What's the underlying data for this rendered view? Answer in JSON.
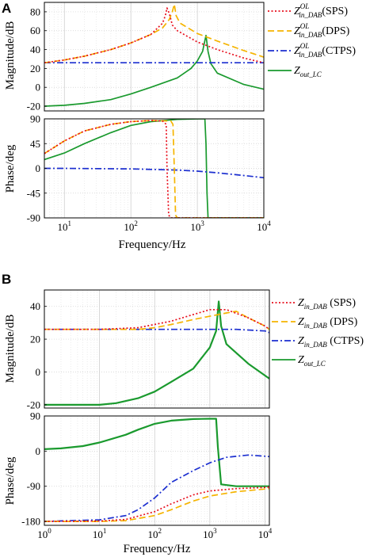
{
  "panel_a": {
    "letter": "A",
    "mag_ylabel": "Magnitude/dB",
    "phase_ylabel": "Phase/deg",
    "xlabel": "Frequency/Hz",
    "mag_ticks": [
      "80",
      "60",
      "40",
      "20",
      "0",
      "-20"
    ],
    "phase_ticks": [
      "90",
      "45",
      "0",
      "-45",
      "-90"
    ],
    "x_ticks": [
      {
        "base": "10",
        "exp": "1"
      },
      {
        "base": "10",
        "exp": "2"
      },
      {
        "base": "10",
        "exp": "3"
      },
      {
        "base": "10",
        "exp": "4"
      }
    ],
    "legend": [
      {
        "sym": "Z",
        "sub": "in_DAB",
        "sup": "OL",
        "tail": "(SPS)",
        "color": "#e8101e",
        "dash": "2,2.5"
      },
      {
        "sym": "Z",
        "sub": "in_DAB",
        "sup": "OL",
        "tail": "(DPS)",
        "color": "#f5b400",
        "dash": "8,4"
      },
      {
        "sym": "Z",
        "sub": "in_DAB",
        "sup": "OL",
        "tail": "(CTPS)",
        "color": "#1c2fd0",
        "dash": "8,3,2,3"
      },
      {
        "sym": "Z",
        "sub": "out_LC",
        "sup": "",
        "tail": "",
        "color": "#1a9a2e",
        "dash": ""
      }
    ]
  },
  "panel_b": {
    "letter": "B",
    "mag_ylabel": "Magnitude/dB",
    "phase_ylabel": "Phase/deg",
    "xlabel": "Frequency/Hz",
    "mag_ticks": [
      "40",
      "20",
      "0",
      "-20"
    ],
    "phase_ticks": [
      "90",
      "0",
      "-90",
      "-180"
    ],
    "x_ticks": [
      {
        "base": "10",
        "exp": "0"
      },
      {
        "base": "10",
        "exp": "1"
      },
      {
        "base": "10",
        "exp": "2"
      },
      {
        "base": "10",
        "exp": "3"
      },
      {
        "base": "10",
        "exp": "4"
      }
    ],
    "legend": [
      {
        "sym": "Z",
        "sub": "in_DAB",
        "sup": "",
        "tail": " (SPS)",
        "color": "#e8101e",
        "dash": "2,2.5"
      },
      {
        "sym": "Z",
        "sub": "in_DAB",
        "sup": "",
        "tail": " (DPS)",
        "color": "#f5b400",
        "dash": "8,4"
      },
      {
        "sym": "Z",
        "sub": "in_DAB",
        "sup": "",
        "tail": " (CTPS)",
        "color": "#1c2fd0",
        "dash": "8,3,2,3"
      },
      {
        "sym": "Z",
        "sub": "out_LC",
        "sup": "",
        "tail": "",
        "color": "#1a9a2e",
        "dash": ""
      }
    ]
  },
  "chart_data": [
    {
      "type": "line",
      "panel": "A-magnitude",
      "xscale": "log",
      "xlim": [
        5,
        10000
      ],
      "ylim": [
        -25,
        90
      ],
      "xlabel": "Frequency/Hz",
      "ylabel": "Magnitude/dB",
      "series": [
        {
          "name": "Z_in_DAB^OL(SPS)",
          "color": "#e8101e",
          "x": [
            5,
            10,
            20,
            50,
            100,
            200,
            300,
            330,
            350,
            380,
            420,
            500,
            1000,
            2000,
            5000,
            10000
          ],
          "y": [
            26,
            29,
            33,
            40,
            47,
            56,
            68,
            76,
            84,
            78,
            66,
            60,
            48,
            40,
            31,
            26
          ]
        },
        {
          "name": "Z_in_DAB^OL(DPS)",
          "color": "#f5b400",
          "x": [
            5,
            10,
            20,
            50,
            100,
            200,
            300,
            380,
            420,
            450,
            480,
            550,
            1000,
            2000,
            5000,
            10000
          ],
          "y": [
            26,
            29,
            33,
            40,
            47,
            56,
            63,
            72,
            80,
            88,
            76,
            68,
            57,
            49,
            39,
            32
          ]
        },
        {
          "name": "Z_in_DAB^OL(CTPS)",
          "color": "#1c2fd0",
          "x": [
            5,
            10,
            100,
            1000,
            10000
          ],
          "y": [
            26,
            26,
            26,
            26,
            26
          ]
        },
        {
          "name": "Z_out_LC",
          "color": "#1a9a2e",
          "x": [
            5,
            10,
            20,
            50,
            100,
            200,
            500,
            800,
            1000,
            1200,
            1350,
            1450,
            1600,
            2000,
            5000,
            10000
          ],
          "y": [
            -20,
            -19,
            -17,
            -13,
            -7,
            0,
            10,
            20,
            28,
            38,
            55,
            38,
            25,
            15,
            3,
            -2
          ]
        }
      ]
    },
    {
      "type": "line",
      "panel": "A-phase",
      "xscale": "log",
      "xlim": [
        5,
        10000
      ],
      "ylim": [
        -90,
        90
      ],
      "xlabel": "Frequency/Hz",
      "ylabel": "Phase/deg",
      "series": [
        {
          "name": "Z_in_DAB^OL(SPS)",
          "color": "#e8101e",
          "x": [
            5,
            10,
            20,
            50,
            100,
            200,
            300,
            340,
            350,
            370,
            400,
            600,
            10000
          ],
          "y": [
            27,
            50,
            68,
            80,
            85,
            87,
            86,
            80,
            0,
            -85,
            -90,
            -90,
            -90
          ]
        },
        {
          "name": "Z_in_DAB^OL(DPS)",
          "color": "#f5b400",
          "x": [
            5,
            10,
            20,
            50,
            100,
            200,
            400,
            430,
            450,
            470,
            500,
            800,
            10000
          ],
          "y": [
            27,
            50,
            68,
            80,
            85,
            87,
            86,
            80,
            0,
            -85,
            -90,
            -90,
            -90
          ]
        },
        {
          "name": "Z_in_DAB^OL(CTPS)",
          "color": "#1c2fd0",
          "x": [
            5,
            10,
            100,
            500,
            1000,
            2000,
            5000,
            10000
          ],
          "y": [
            0,
            0,
            -1,
            -3,
            -5,
            -8,
            -13,
            -17
          ]
        },
        {
          "name": "Z_out_LC",
          "color": "#1a9a2e",
          "x": [
            5,
            10,
            20,
            50,
            100,
            200,
            500,
            1000,
            1300,
            1350,
            1400,
            1450,
            2000,
            10000
          ],
          "y": [
            16,
            28,
            45,
            65,
            78,
            85,
            89,
            90,
            90,
            45,
            -45,
            -90,
            -90,
            -90
          ]
        }
      ]
    },
    {
      "type": "line",
      "panel": "B-magnitude",
      "xscale": "log",
      "xlim": [
        1,
        12000
      ],
      "ylim": [
        -22,
        50
      ],
      "xlabel": "Frequency/Hz",
      "ylabel": "Magnitude/dB",
      "series": [
        {
          "name": "Z_in_DAB (SPS)",
          "color": "#e8101e",
          "x": [
            1,
            10,
            50,
            100,
            200,
            500,
            1000,
            2000,
            5000,
            10000,
            12000
          ],
          "y": [
            26,
            26,
            27,
            29,
            31,
            35,
            38,
            38,
            33,
            28,
            26
          ]
        },
        {
          "name": "Z_in_DAB (DPS)",
          "color": "#f5b400",
          "x": [
            1,
            10,
            50,
            100,
            200,
            500,
            1000,
            2000,
            3000,
            5000,
            10000,
            12000
          ],
          "y": [
            26,
            26,
            26,
            27,
            29,
            32,
            34,
            36,
            37,
            33,
            28,
            26
          ]
        },
        {
          "name": "Z_in_DAB (CTPS)",
          "color": "#1c2fd0",
          "x": [
            1,
            10,
            100,
            1000,
            3000,
            10000,
            12000
          ],
          "y": [
            26,
            26,
            26,
            26,
            26,
            25,
            24
          ]
        },
        {
          "name": "Z_out_LC",
          "color": "#1a9a2e",
          "x": [
            1,
            10,
            20,
            50,
            100,
            200,
            500,
            1000,
            1300,
            1450,
            1600,
            2000,
            5000,
            12000
          ],
          "y": [
            -20,
            -20,
            -19,
            -16,
            -12,
            -6,
            2,
            15,
            25,
            43,
            28,
            17,
            5,
            -4
          ]
        }
      ]
    },
    {
      "type": "line",
      "panel": "B-phase",
      "xscale": "log",
      "xlim": [
        1,
        12000
      ],
      "ylim": [
        -190,
        90
      ],
      "xlabel": "Frequency/Hz",
      "ylabel": "Phase/deg",
      "series": [
        {
          "name": "Z_in_DAB (SPS)",
          "color": "#e8101e",
          "x": [
            1,
            10,
            30,
            100,
            200,
            500,
            1000,
            3000,
            10000,
            12000
          ],
          "y": [
            -180,
            -179,
            -175,
            -155,
            -135,
            -112,
            -102,
            -96,
            -93,
            -92
          ]
        },
        {
          "name": "Z_in_DAB (DPS)",
          "color": "#f5b400",
          "x": [
            1,
            10,
            30,
            100,
            200,
            500,
            1000,
            3000,
            10000,
            12000
          ],
          "y": [
            -180,
            -180,
            -178,
            -165,
            -150,
            -128,
            -115,
            -104,
            -97,
            -96
          ]
        },
        {
          "name": "Z_in_DAB (CTPS)",
          "color": "#1c2fd0",
          "x": [
            1,
            10,
            30,
            50,
            100,
            200,
            500,
            1000,
            2000,
            5000,
            10000,
            12000
          ],
          "y": [
            -180,
            -176,
            -165,
            -150,
            -120,
            -80,
            -50,
            -30,
            -16,
            -10,
            -13,
            -14
          ]
        },
        {
          "name": "Z_out_LC",
          "color": "#1a9a2e",
          "x": [
            1,
            2,
            5,
            10,
            30,
            50,
            100,
            200,
            500,
            1000,
            1300,
            1400,
            1600,
            3000,
            12000
          ],
          "y": [
            5,
            7,
            13,
            22,
            42,
            55,
            70,
            78,
            82,
            83,
            83,
            10,
            -85,
            -90,
            -90
          ]
        }
      ]
    }
  ]
}
